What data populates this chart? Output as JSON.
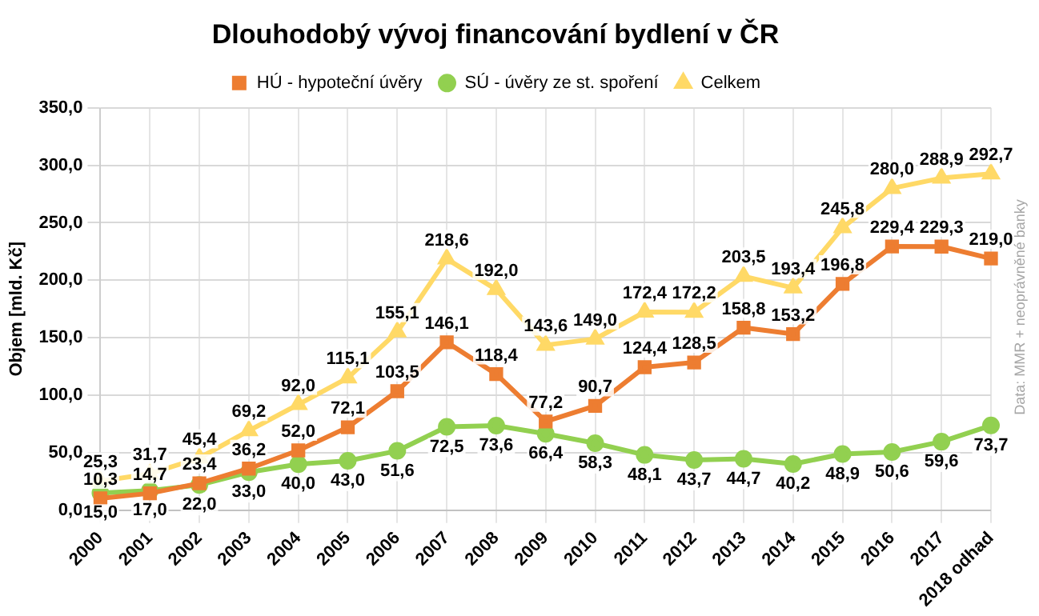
{
  "chart_data": {
    "type": "line",
    "title": "Dlouhodobý vývoj financování bydlení v ČR",
    "ylabel": "Objem [mld. Kč]",
    "categories": [
      "2000",
      "2001",
      "2002",
      "2003",
      "2004",
      "2005",
      "2006",
      "2007",
      "2008",
      "2009",
      "2010",
      "2011",
      "2012",
      "2013",
      "2014",
      "2015",
      "2016",
      "2017",
      "2018 odhad"
    ],
    "series": [
      {
        "name": "HÚ - hypoteční úvěry",
        "color": "#ed7d31",
        "marker": "square",
        "values": [
          10.3,
          14.7,
          23.4,
          36.2,
          52.0,
          72.1,
          103.5,
          146.1,
          118.4,
          77.2,
          90.7,
          124.4,
          128.5,
          158.8,
          153.2,
          196.8,
          229.4,
          229.3,
          219.0
        ],
        "value_labels": [
          "10,3",
          "14,7",
          "23,4",
          "36,2",
          "52,0",
          "72,1",
          "103,5",
          "146,1",
          "118,4",
          "77,2",
          "90,7",
          "124,4",
          "128,5",
          "158,8",
          "153,2",
          "196,8",
          "229,4",
          "229,3",
          "219,0"
        ]
      },
      {
        "name": "SÚ - úvěry ze st. spoření",
        "color": "#92d050",
        "marker": "circle",
        "values": [
          15.0,
          17.0,
          22.0,
          33.0,
          40.0,
          43.0,
          51.6,
          72.5,
          73.6,
          66.4,
          58.3,
          48.1,
          43.7,
          44.7,
          40.2,
          48.9,
          50.6,
          59.6,
          73.7
        ],
        "value_labels": [
          "15,0",
          "17,0",
          "22,0",
          "33,0",
          "40,0",
          "43,0",
          "51,6",
          "72,5",
          "73,6",
          "66,4",
          "58,3",
          "48,1",
          "43,7",
          "44,7",
          "40,2",
          "48,9",
          "50,6",
          "59,6",
          "73,7"
        ]
      },
      {
        "name": "Celkem",
        "color": "#ffd966",
        "marker": "triangle",
        "values": [
          25.3,
          31.7,
          45.4,
          69.2,
          92.0,
          115.1,
          155.1,
          218.6,
          192.0,
          143.6,
          149.0,
          172.4,
          172.2,
          203.5,
          193.4,
          245.8,
          280.0,
          288.9,
          292.7
        ],
        "value_labels": [
          "25,3",
          "31,7",
          "45,4",
          "69,2",
          "92,0",
          "115,1",
          "155,1",
          "218,6",
          "192,0",
          "143,6",
          "149,0",
          "172,4",
          "172,2",
          "203,5",
          "193,4",
          "245,8",
          "280,0",
          "288,9",
          "292,7"
        ]
      }
    ],
    "ylim": [
      0,
      350
    ],
    "yticks": [
      {
        "value": 0,
        "label": "0,0"
      },
      {
        "value": 50,
        "label": "50,0"
      },
      {
        "value": 100,
        "label": "100,0"
      },
      {
        "value": 150,
        "label": "150,0"
      },
      {
        "value": 200,
        "label": "200,0"
      },
      {
        "value": 250,
        "label": "250,0"
      },
      {
        "value": 300,
        "label": "300,0"
      },
      {
        "value": 350,
        "label": "350,0"
      }
    ],
    "grid": true,
    "legend": "top",
    "line_style": "solid",
    "annotations": [
      "Data: MMR + neoprávněné banky"
    ]
  }
}
